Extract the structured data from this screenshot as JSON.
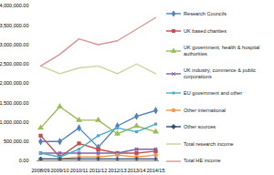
{
  "chart_data": {
    "type": "line",
    "categories": [
      "2008/09",
      "2009/10",
      "2010/11",
      "2011/12",
      "2012/13",
      "2013/14",
      "2014/15"
    ],
    "ylim": [
      0,
      4000000
    ],
    "yticks": [
      {
        "value": 0,
        "label": "0.00"
      },
      {
        "value": 500000,
        "label": "500,000.00"
      },
      {
        "value": 1000000,
        "label": "1,000,000.00"
      },
      {
        "value": 1500000,
        "label": "1,500,000.00"
      },
      {
        "value": 2000000,
        "label": "2,000,000.00"
      },
      {
        "value": 2500000,
        "label": "2,500,000.00"
      },
      {
        "value": 3000000,
        "label": "3,000,000.00"
      },
      {
        "value": 3500000,
        "label": "3,500,000.00"
      },
      {
        "value": 4000000,
        "label": "4,000,000.00"
      }
    ],
    "grid": false,
    "legend": "right",
    "series": [
      {
        "name": "Research Councils",
        "color": "#4f81bd",
        "marker": "diamond",
        "values": [
          500000,
          500000,
          850000,
          350000,
          900000,
          1150000,
          1300000
        ]
      },
      {
        "name": "UK based charities",
        "color": "#c0504d",
        "marker": "square",
        "values": [
          650000,
          100000,
          450000,
          300000,
          200000,
          200000,
          250000
        ]
      },
      {
        "name": "UK government, health & hospital authorities",
        "color": "#9bbb59",
        "marker": "triangle",
        "values": [
          850000,
          1400000,
          1050000,
          1050000,
          700000,
          900000,
          750000
        ]
      },
      {
        "name": "UK industry, commerce & public corporations",
        "color": "#8064a2",
        "marker": "times",
        "values": [
          200000,
          200000,
          200000,
          200000,
          200000,
          300000,
          300000
        ]
      },
      {
        "name": "EU government and other",
        "color": "#4bacc6",
        "marker": "asterisk",
        "values": [
          200000,
          100000,
          300000,
          650000,
          850000,
          750000,
          950000
        ]
      },
      {
        "name": "Other international",
        "color": "#f79646",
        "marker": "circle",
        "values": [
          50000,
          50000,
          100000,
          100000,
          150000,
          100000,
          150000
        ]
      },
      {
        "name": "Other sources",
        "color": "#2c4d75",
        "marker": "plus",
        "values": [
          50000,
          50000,
          50000,
          50000,
          50000,
          50000,
          50000
        ]
      },
      {
        "name": "Total research income",
        "color": "#c3d69b",
        "marker": "none",
        "values": [
          2450000,
          2250000,
          2400000,
          2450000,
          2250000,
          2500000,
          2250000
        ]
      },
      {
        "name": "Total HE income",
        "color": "#d99694",
        "marker": "none",
        "values": [
          2450000,
          2750000,
          3150000,
          3000000,
          3100000,
          3400000,
          3700000
        ]
      }
    ]
  }
}
